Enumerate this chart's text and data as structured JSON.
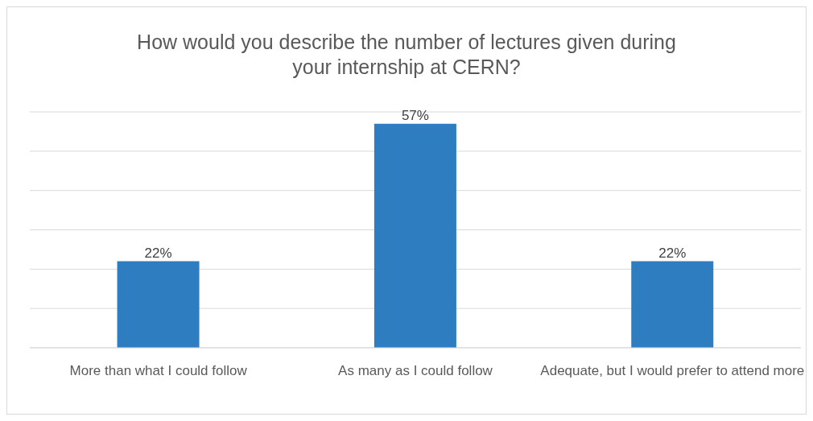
{
  "chart_data": {
    "type": "bar",
    "title": "How would you describe the number of lectures given during your internship at CERN?",
    "categories": [
      "More than what I could follow",
      "As many as I could follow",
      "Adequate, but I would prefer to attend more"
    ],
    "values": [
      22,
      57,
      22
    ],
    "value_labels": [
      "22%",
      "57%",
      "22%"
    ],
    "color": "#2e7dc1",
    "tick_labels": "x",
    "grid": "y"
  }
}
